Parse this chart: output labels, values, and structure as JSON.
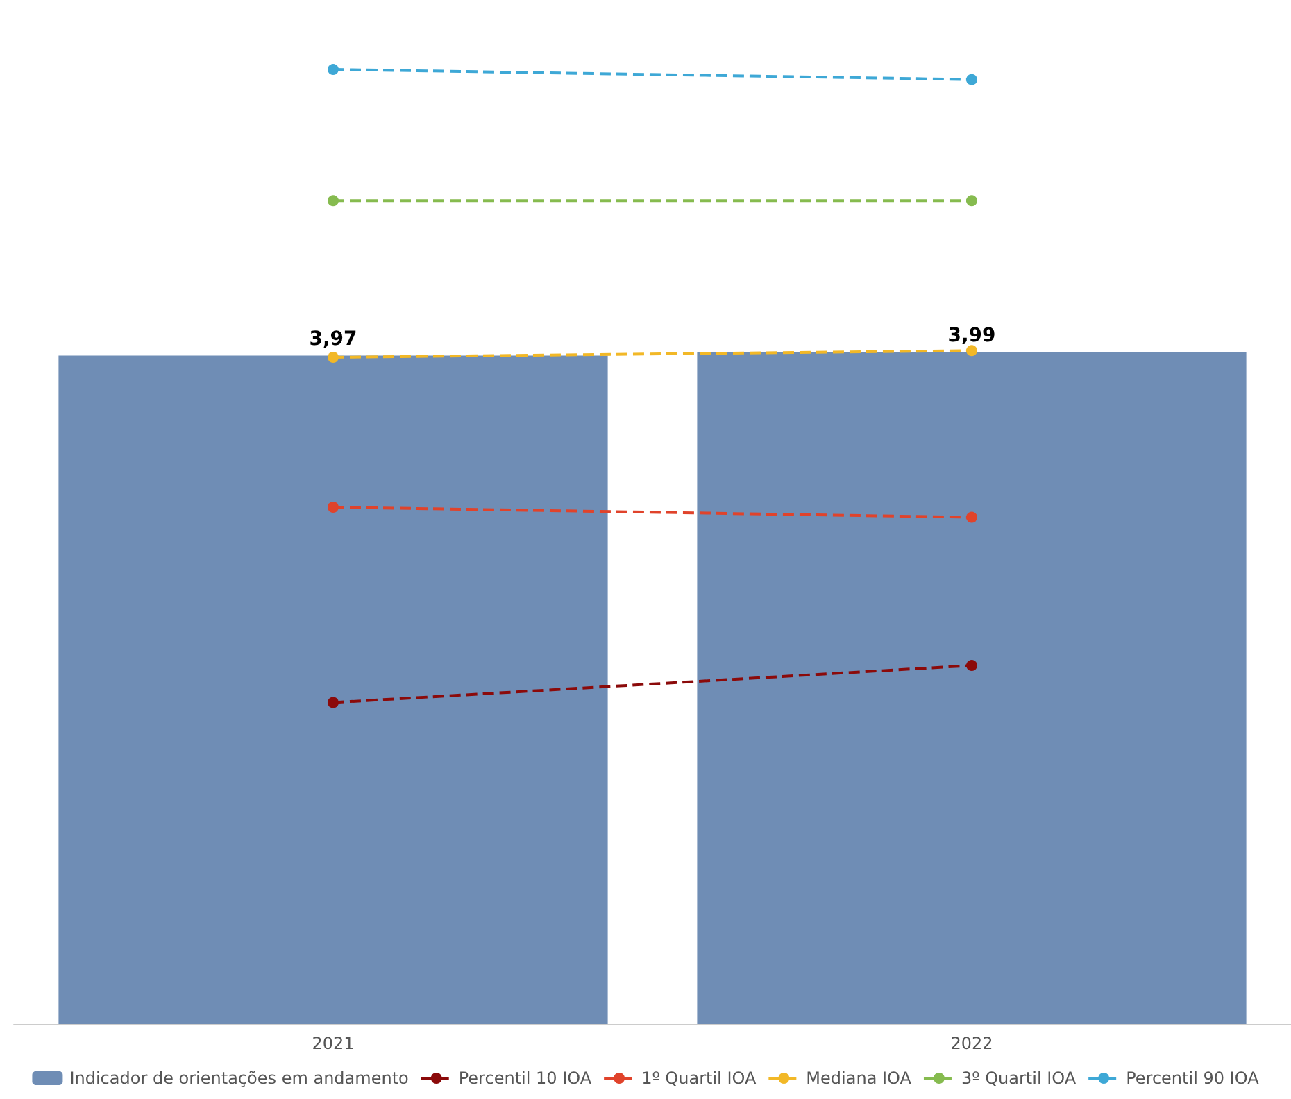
{
  "chart_data": {
    "type": "bar",
    "categories": [
      "2021",
      "2022"
    ],
    "legend": "bottom",
    "marker": "circle",
    "line_style": "dashed",
    "series": [
      {
        "name": "Indicador de orientações em andamento",
        "color": "#6f8db5",
        "values": [
          3.97,
          3.99
        ],
        "value_labels": [
          "3,97",
          "3,99"
        ]
      },
      {
        "name": "Percentil 10 IOA",
        "type": "line",
        "color": "#8b0a0a",
        "values": [
          1.91,
          2.13
        ]
      },
      {
        "name": "1º Quartil IOA",
        "type": "line",
        "color": "#e0432b",
        "values": [
          3.07,
          3.01
        ]
      },
      {
        "name": "Mediana IOA",
        "type": "line",
        "color": "#f2b827",
        "values": [
          3.96,
          4.0
        ]
      },
      {
        "name": "3º Quartil IOA",
        "type": "line",
        "color": "#86bb4f",
        "values": [
          4.89,
          4.89
        ]
      },
      {
        "name": "Percentil 90 IOA",
        "type": "line",
        "color": "#3ea8d6",
        "values": [
          5.67,
          5.61
        ]
      }
    ]
  }
}
